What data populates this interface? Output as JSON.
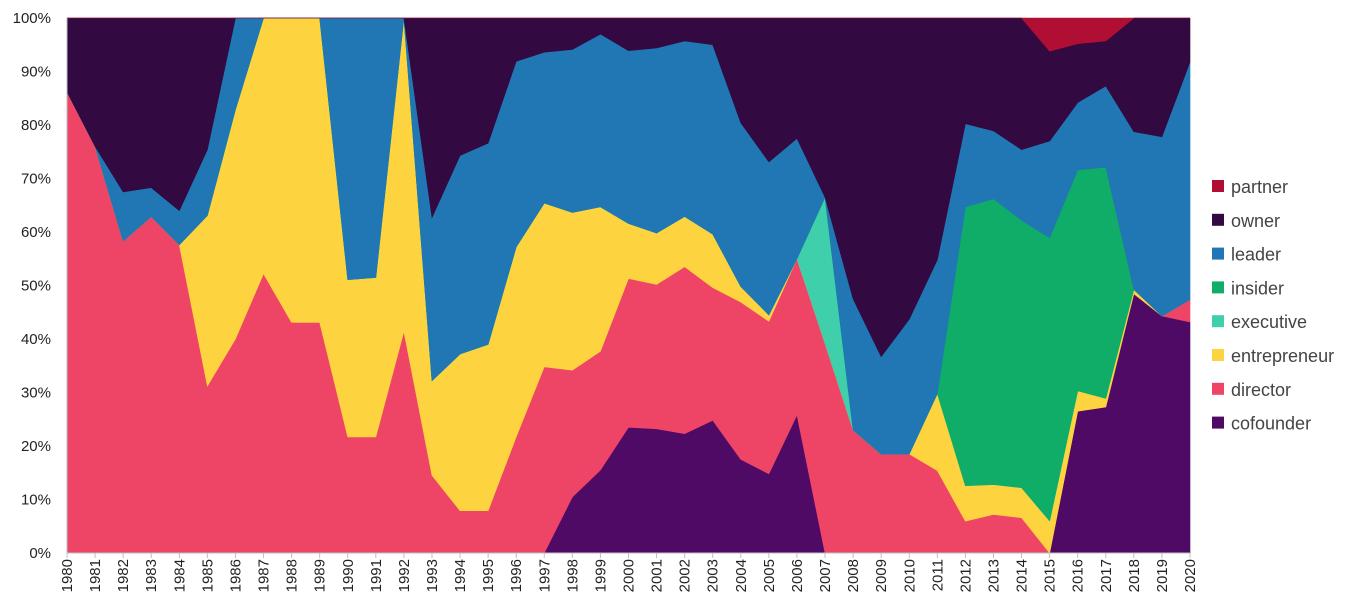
{
  "chart_data": {
    "type": "area",
    "stacked": true,
    "normalized": true,
    "title": "",
    "xlabel": "",
    "ylabel": "",
    "ylim": [
      0,
      100
    ],
    "y_ticks": [
      "0%",
      "10%",
      "20%",
      "30%",
      "40%",
      "50%",
      "60%",
      "70%",
      "80%",
      "90%",
      "100%"
    ],
    "x": [
      "1980",
      "1981",
      "1982",
      "1983",
      "1984",
      "1985",
      "1986",
      "1987",
      "1988",
      "1989",
      "1990",
      "1991",
      "1992",
      "1993",
      "1994",
      "1995",
      "1996",
      "1997",
      "1998",
      "1999",
      "2000",
      "2001",
      "2002",
      "2003",
      "2004",
      "2005",
      "2006",
      "2007",
      "2008",
      "2009",
      "2010",
      "2011",
      "2012",
      "2013",
      "2014",
      "2015",
      "2016",
      "2017",
      "2018",
      "2019",
      "2020"
    ],
    "legend_position": "right",
    "series": [
      {
        "name": "cofounder",
        "color": "#4f0a66",
        "values": [
          0,
          0,
          0,
          0,
          0,
          0,
          0,
          0,
          0,
          0,
          0,
          0,
          0,
          0,
          0,
          0,
          0,
          0,
          10.5,
          15.5,
          23.5,
          23.2,
          22.3,
          24.8,
          17.5,
          14.8,
          25.8,
          0,
          0,
          0,
          0,
          0,
          0,
          0,
          0,
          0,
          26.5,
          27.3,
          48.8,
          44.3,
          45.2
        ]
      },
      {
        "name": "director",
        "color": "#ee4466",
        "values": [
          86.2,
          76,
          58.3,
          62.9,
          57.6,
          31.2,
          40,
          52.2,
          43.1,
          43.1,
          21.7,
          21.7,
          41.4,
          14.5,
          7.9,
          7.9,
          21.7,
          34.8,
          23.8,
          22.2,
          27.8,
          27,
          31.2,
          24.8,
          29.4,
          28.5,
          29.2,
          39.2,
          23,
          18.5,
          18.5,
          15.4,
          6.2,
          7.2,
          6.6,
          0,
          0,
          0,
          0,
          0,
          4.4
        ]
      },
      {
        "name": "entrepreneur",
        "color": "#fdd340",
        "values": [
          0,
          0,
          0,
          0,
          0,
          31.9,
          42.9,
          47.8,
          56.9,
          56.9,
          29.4,
          29.8,
          58.6,
          17.7,
          29.3,
          31.1,
          35.5,
          30.6,
          29.6,
          27,
          10.3,
          9.6,
          9.4,
          10,
          2.9,
          1.2,
          0,
          0,
          0,
          0,
          0,
          14.4,
          6.9,
          5.6,
          5.6,
          6,
          3.8,
          1.6,
          0.8,
          0,
          0
        ]
      },
      {
        "name": "executive",
        "color": "#3fcfaa",
        "values": [
          0,
          0,
          0,
          0,
          0,
          0,
          0,
          0,
          0,
          0,
          0,
          0,
          0,
          0,
          0,
          0,
          0,
          0,
          0,
          0,
          0,
          0,
          0,
          0,
          0,
          0,
          0,
          27.3,
          0,
          0,
          0,
          0,
          0,
          0,
          0,
          0,
          0,
          0,
          0,
          0,
          0
        ]
      },
      {
        "name": "insider",
        "color": "#10ad68",
        "values": [
          0,
          0,
          0,
          0,
          0,
          0,
          0,
          0,
          0,
          0,
          0,
          0,
          0,
          0,
          0,
          0,
          0,
          0,
          0,
          0,
          0,
          0,
          0,
          0,
          0,
          0,
          0,
          0,
          0,
          0,
          0,
          0,
          54.3,
          53.4,
          50,
          52.9,
          41.3,
          43.2,
          0,
          0,
          0
        ]
      },
      {
        "name": "leader",
        "color": "#2077b4",
        "values": [
          0,
          0,
          9.2,
          5.4,
          6.4,
          12.3,
          17.1,
          0,
          0,
          0,
          48.9,
          48.5,
          0,
          30.5,
          37.1,
          37.6,
          34.7,
          28.2,
          30.6,
          32.3,
          32.3,
          34.6,
          32.8,
          35.4,
          30.6,
          28.6,
          22.5,
          0,
          24.5,
          18.2,
          25.2,
          25,
          16.2,
          12.7,
          13.2,
          18.1,
          12.6,
          15.2,
          29.7,
          33.5,
          46.5
        ]
      },
      {
        "name": "owner",
        "color": "#320940",
        "values": [
          13.8,
          24,
          32.5,
          31.7,
          36,
          24.6,
          0,
          0,
          0,
          0,
          0,
          0,
          0,
          37.3,
          25.7,
          23.4,
          8.1,
          6.4,
          5.9,
          3,
          6.1,
          5.6,
          4.3,
          5,
          19.6,
          26.9,
          22.5,
          33.5,
          52.5,
          63.3,
          56.3,
          45.2,
          20.6,
          21.1,
          24.6,
          16.8,
          11,
          8.4,
          21.4,
          22.2,
          8.6
        ]
      },
      {
        "name": "partner",
        "color": "#b10e34",
        "values": [
          0,
          0,
          0,
          0,
          0,
          0,
          0,
          0,
          0,
          0,
          0,
          0,
          0,
          0,
          0,
          0,
          0,
          0,
          0,
          0,
          0,
          0,
          0,
          0,
          0,
          0,
          0,
          0,
          0,
          0,
          0,
          0,
          0,
          0,
          0,
          6.2,
          4.8,
          4.3,
          0,
          0,
          0
        ]
      }
    ]
  }
}
